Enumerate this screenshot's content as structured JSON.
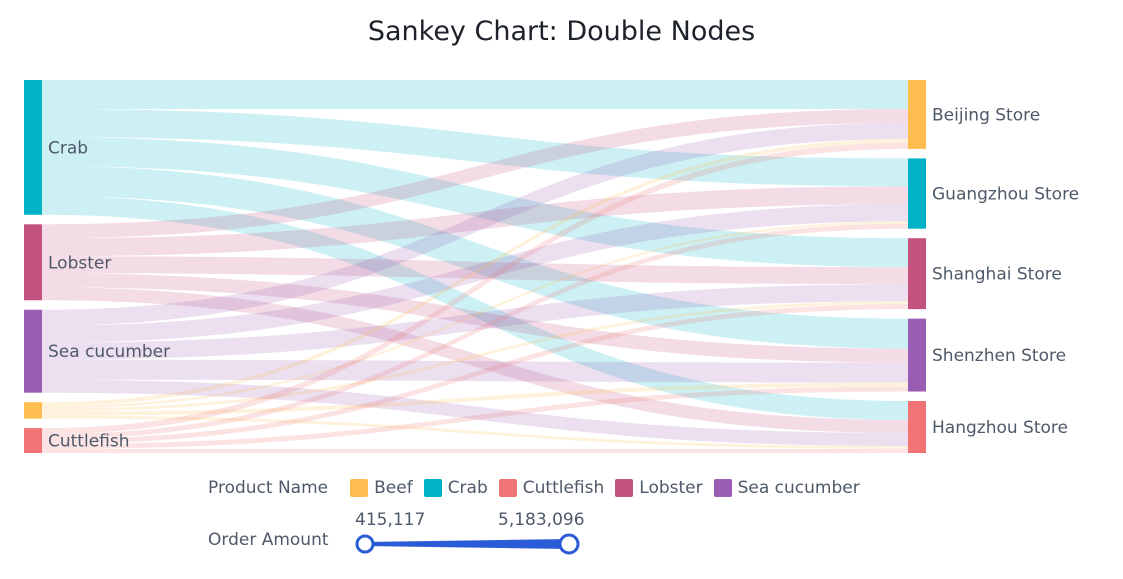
{
  "chart_data": {
    "type": "sankey",
    "title": "Sankey Chart: Double Nodes",
    "source_nodes": [
      "Crab",
      "Lobster",
      "Sea cucumber",
      "Beef",
      "Cuttlefish"
    ],
    "target_nodes": [
      "Beijing Store",
      "Guangzhou Store",
      "Shanghai Store",
      "Shenzhen Store",
      "Hangzhou Store"
    ],
    "links": [
      {
        "source": "Crab",
        "target": "Beijing Store",
        "value": 5010000
      },
      {
        "source": "Crab",
        "target": "Guangzhou Store",
        "value": 4840000
      },
      {
        "source": "Crab",
        "target": "Shanghai Store",
        "value": 5010000
      },
      {
        "source": "Crab",
        "target": "Shenzhen Store",
        "value": 5183096
      },
      {
        "source": "Crab",
        "target": "Hangzhou Store",
        "value": 3280000
      },
      {
        "source": "Lobster",
        "target": "Beijing Store",
        "value": 2420000
      },
      {
        "source": "Lobster",
        "target": "Guangzhou Store",
        "value": 3110000
      },
      {
        "source": "Lobster",
        "target": "Shanghai Store",
        "value": 2940000
      },
      {
        "source": "Lobster",
        "target": "Shenzhen Store",
        "value": 2420000
      },
      {
        "source": "Lobster",
        "target": "Hangzhou Store",
        "value": 2250000
      },
      {
        "source": "Sea cucumber",
        "target": "Beijing Store",
        "value": 2760000
      },
      {
        "source": "Sea cucumber",
        "target": "Guangzhou Store",
        "value": 2940000
      },
      {
        "source": "Sea cucumber",
        "target": "Shanghai Store",
        "value": 2940000
      },
      {
        "source": "Sea cucumber",
        "target": "Shenzhen Store",
        "value": 3460000
      },
      {
        "source": "Sea cucumber",
        "target": "Hangzhou Store",
        "value": 2250000
      },
      {
        "source": "Beef",
        "target": "Beijing Store",
        "value": 690000
      },
      {
        "source": "Beef",
        "target": "Guangzhou Store",
        "value": 415117
      },
      {
        "source": "Beef",
        "target": "Shanghai Store",
        "value": 520000
      },
      {
        "source": "Beef",
        "target": "Shenzhen Store",
        "value": 690000
      },
      {
        "source": "Beef",
        "target": "Hangzhou Store",
        "value": 520000
      },
      {
        "source": "Cuttlefish",
        "target": "Beijing Store",
        "value": 1040000
      },
      {
        "source": "Cuttlefish",
        "target": "Guangzhou Store",
        "value": 860000
      },
      {
        "source": "Cuttlefish",
        "target": "Shanghai Store",
        "value": 860000
      },
      {
        "source": "Cuttlefish",
        "target": "Shenzhen Store",
        "value": 860000
      },
      {
        "source": "Cuttlefish",
        "target": "Hangzhou Store",
        "value": 690000
      }
    ],
    "colors": {
      "Beef": "#ffbd4f",
      "Crab": "#00b2c6",
      "Cuttlefish": "#f07474",
      "Lobster": "#c4527f",
      "Sea cucumber": "#9a5db4",
      "Beijing Store": "#ffbd4f",
      "Guangzhou Store": "#00b2c6",
      "Shanghai Store": "#c4527f",
      "Shenzhen Store": "#9a5db4",
      "Hangzhou Store": "#f07474"
    },
    "legend": {
      "title": "Product Name",
      "items": [
        "Beef",
        "Crab",
        "Cuttlefish",
        "Lobster",
        "Sea cucumber"
      ]
    },
    "range_legend": {
      "title": "Order Amount",
      "min_label": "415,117",
      "max_label": "5,183,096",
      "color": "#2b5bd7"
    }
  }
}
